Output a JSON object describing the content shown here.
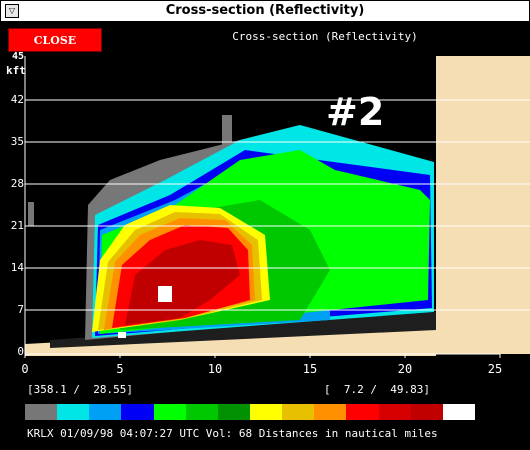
{
  "window": {
    "title": "Cross-section (Reflectivity)"
  },
  "toolbar": {
    "close_label": "CLOSE",
    "header_label": "Cross-section (Reflectivity)"
  },
  "plot": {
    "y_top_label": "45",
    "y_unit": "kft",
    "y_ticks": [
      "42",
      "35",
      "28",
      "21",
      "14",
      "7",
      "0"
    ],
    "x_ticks": [
      "0",
      "5",
      "10",
      "15",
      "20",
      "25"
    ],
    "annotation": "#2"
  },
  "footer": {
    "left_coord": "[358.1 /  28.55]",
    "right_coord": "[  7.2 /  49.83]",
    "status": "KRLX 01/09/98 04:07:27 UTC Vol: 68 Distances in nautical miles"
  },
  "colors": {
    "colorbar": [
      "#777777",
      "#00e5e5",
      "#00a0f5",
      "#0000f5",
      "#00ff00",
      "#00c800",
      "#009000",
      "#ffff00",
      "#e7c000",
      "#ff9000",
      "#ff0000",
      "#d60000",
      "#c00000",
      "#ffffff"
    ],
    "ground": "#f5deb3",
    "accent": "#ff0000"
  },
  "chart_data": {
    "type": "heatmap",
    "title": "Cross-section (Reflectivity)",
    "xlabel": "",
    "ylabel": "kft",
    "xlim": [
      0,
      25
    ],
    "ylim": [
      0,
      45
    ],
    "x_ticks": [
      0,
      5,
      10,
      15,
      20,
      25
    ],
    "y_ticks": [
      0,
      7,
      14,
      21,
      28,
      35,
      42
    ],
    "grid": true
  }
}
